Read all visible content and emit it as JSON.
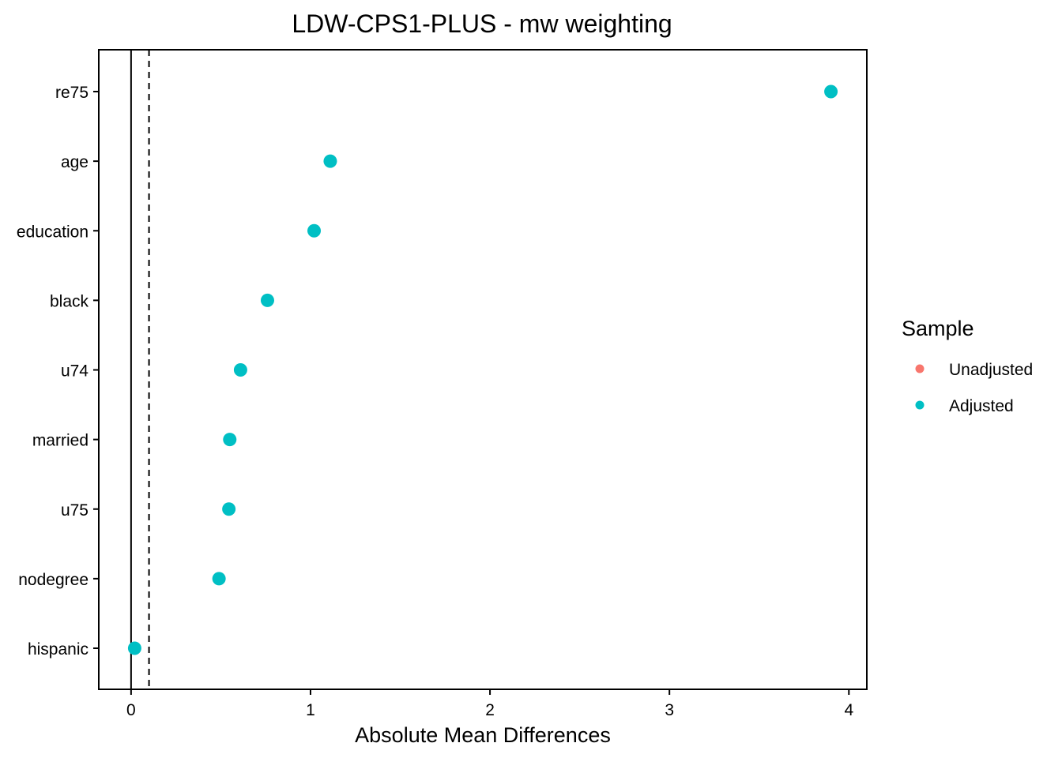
{
  "chart_data": {
    "type": "scatter",
    "title": "LDW-CPS1-PLUS - mw weighting",
    "xlabel": "Absolute Mean Differences",
    "ylabel": "",
    "xlim": [
      -0.18,
      4.1
    ],
    "x_ticks": [
      0,
      1,
      2,
      3,
      4
    ],
    "categories": [
      "re75",
      "age",
      "education",
      "black",
      "u74",
      "married",
      "u75",
      "nodegree",
      "hispanic"
    ],
    "reference_lines": [
      {
        "x": 0,
        "style": "solid"
      },
      {
        "x": 0.1,
        "style": "dashed"
      }
    ],
    "grid": false,
    "legend": {
      "title": "Sample",
      "position": "right",
      "entries": [
        {
          "label": "Unadjusted",
          "color": "#F8766D"
        },
        {
          "label": "Adjusted",
          "color": "#00BFC4"
        }
      ]
    },
    "series": [
      {
        "name": "Adjusted",
        "color": "#00BFC4",
        "points": [
          {
            "category": "re75",
            "x": 3.9
          },
          {
            "category": "age",
            "x": 1.11
          },
          {
            "category": "education",
            "x": 1.02
          },
          {
            "category": "black",
            "x": 0.76
          },
          {
            "category": "u74",
            "x": 0.61
          },
          {
            "category": "married",
            "x": 0.55
          },
          {
            "category": "u75",
            "x": 0.545
          },
          {
            "category": "nodegree",
            "x": 0.49
          },
          {
            "category": "hispanic",
            "x": 0.02
          }
        ]
      }
    ]
  }
}
